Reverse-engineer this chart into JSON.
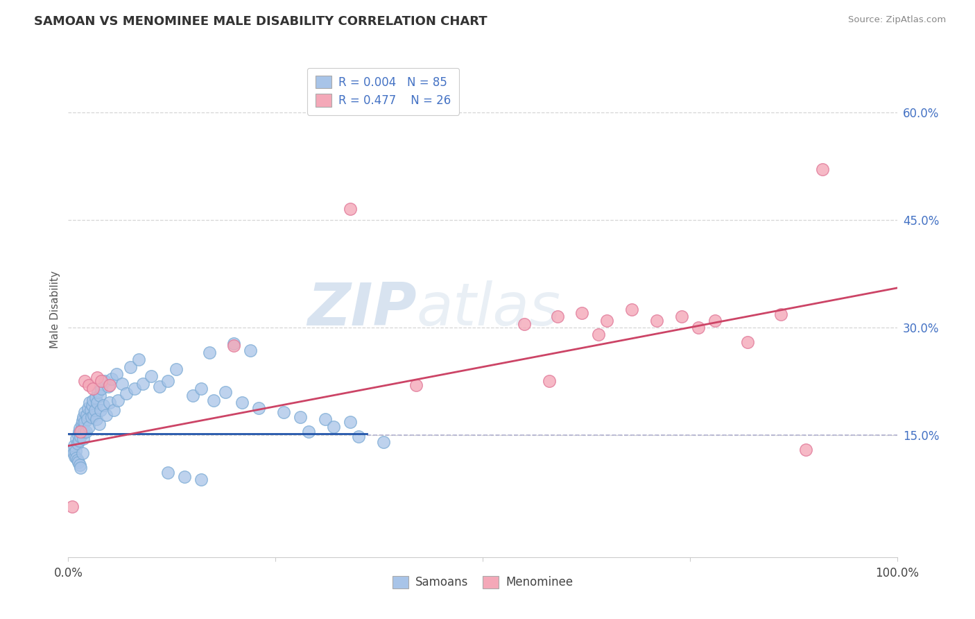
{
  "title": "SAMOAN VS MENOMINEE MALE DISABILITY CORRELATION CHART",
  "source": "Source: ZipAtlas.com",
  "ylabel": "Male Disability",
  "legend_labels": [
    "Samoans",
    "Menominee"
  ],
  "legend_r": [
    "R = 0.004",
    "R = 0.477"
  ],
  "legend_n": [
    "N = 85",
    "N = 26"
  ],
  "samoan_color": "#a8c4e8",
  "samoan_edge_color": "#7aaad4",
  "menominee_color": "#f4a8b8",
  "menominee_edge_color": "#e07898",
  "samoan_line_color": "#2255aa",
  "menominee_line_color": "#cc4466",
  "grid_color": "#cccccc",
  "dashed_color": "#aaaacc",
  "background_color": "#ffffff",
  "watermark_color": "#c8d8ee",
  "xlim": [
    0.0,
    1.0
  ],
  "ylim": [
    -0.02,
    0.67
  ],
  "yticks_right": [
    0.15,
    0.3,
    0.45,
    0.6
  ],
  "yticklabels_right": [
    "15.0%",
    "30.0%",
    "45.0%",
    "60.0%"
  ],
  "dashed_line_y": 0.15,
  "samoan_line_x_end": 0.36,
  "menominee_line_y0": 0.135,
  "menominee_line_y1": 0.355,
  "samoan_x": [
    0.005,
    0.006,
    0.007,
    0.008,
    0.009,
    0.01,
    0.01,
    0.011,
    0.011,
    0.012,
    0.012,
    0.013,
    0.013,
    0.014,
    0.014,
    0.015,
    0.015,
    0.016,
    0.016,
    0.017,
    0.017,
    0.018,
    0.018,
    0.019,
    0.02,
    0.02,
    0.021,
    0.022,
    0.023,
    0.024,
    0.025,
    0.026,
    0.027,
    0.028,
    0.029,
    0.03,
    0.031,
    0.032,
    0.033,
    0.034,
    0.035,
    0.036,
    0.037,
    0.038,
    0.039,
    0.04,
    0.042,
    0.044,
    0.046,
    0.048,
    0.05,
    0.052,
    0.055,
    0.058,
    0.06,
    0.065,
    0.07,
    0.075,
    0.08,
    0.085,
    0.09,
    0.1,
    0.11,
    0.12,
    0.13,
    0.15,
    0.16,
    0.175,
    0.19,
    0.21,
    0.23,
    0.26,
    0.28,
    0.31,
    0.34,
    0.17,
    0.2,
    0.22,
    0.29,
    0.32,
    0.35,
    0.38,
    0.12,
    0.14,
    0.16
  ],
  "samoan_y": [
    0.13,
    0.125,
    0.135,
    0.12,
    0.128,
    0.145,
    0.118,
    0.138,
    0.115,
    0.15,
    0.112,
    0.142,
    0.155,
    0.108,
    0.16,
    0.148,
    0.105,
    0.165,
    0.158,
    0.125,
    0.17,
    0.145,
    0.175,
    0.155,
    0.168,
    0.182,
    0.155,
    0.178,
    0.172,
    0.188,
    0.162,
    0.195,
    0.185,
    0.175,
    0.192,
    0.198,
    0.178,
    0.185,
    0.202,
    0.172,
    0.195,
    0.21,
    0.165,
    0.205,
    0.185,
    0.215,
    0.192,
    0.225,
    0.178,
    0.218,
    0.195,
    0.228,
    0.185,
    0.235,
    0.198,
    0.222,
    0.208,
    0.245,
    0.215,
    0.255,
    0.222,
    0.232,
    0.218,
    0.225,
    0.242,
    0.205,
    0.215,
    0.198,
    0.21,
    0.195,
    0.188,
    0.182,
    0.175,
    0.172,
    0.168,
    0.265,
    0.278,
    0.268,
    0.155,
    0.162,
    0.148,
    0.14,
    0.098,
    0.092,
    0.088
  ],
  "menominee_x": [
    0.005,
    0.015,
    0.02,
    0.025,
    0.03,
    0.035,
    0.04,
    0.05,
    0.2,
    0.34,
    0.42,
    0.55,
    0.59,
    0.62,
    0.65,
    0.68,
    0.71,
    0.74,
    0.76,
    0.78,
    0.82,
    0.86,
    0.89,
    0.91,
    0.58,
    0.64
  ],
  "menominee_y": [
    0.05,
    0.155,
    0.225,
    0.22,
    0.215,
    0.23,
    0.225,
    0.22,
    0.275,
    0.465,
    0.22,
    0.305,
    0.315,
    0.32,
    0.31,
    0.325,
    0.31,
    0.315,
    0.3,
    0.31,
    0.28,
    0.318,
    0.13,
    0.52,
    0.225,
    0.29
  ]
}
